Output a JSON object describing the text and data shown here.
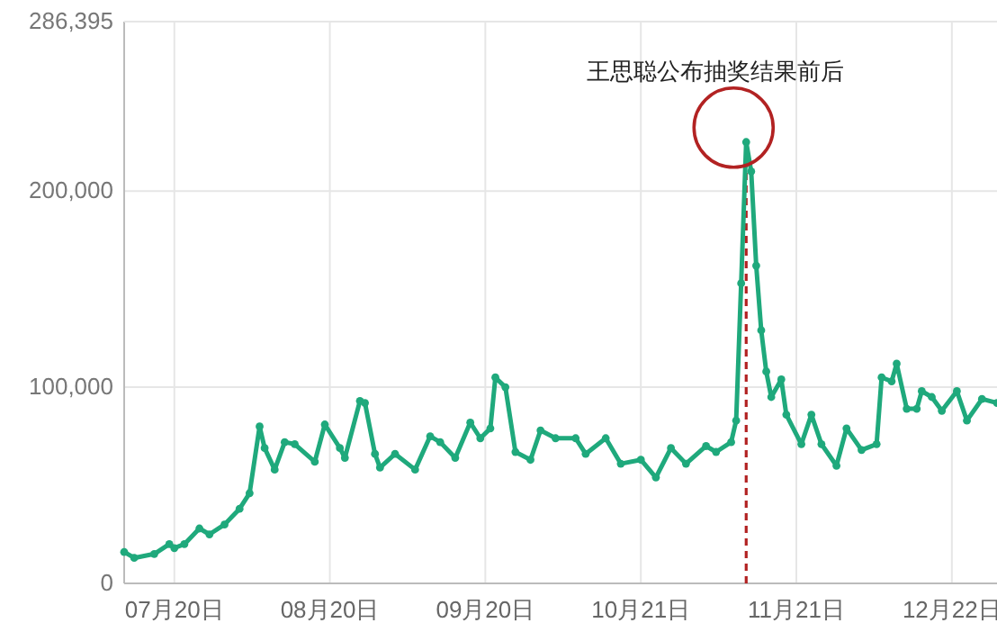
{
  "chart_data": {
    "type": "line",
    "color": "#1fa97c",
    "marker": "circle",
    "line_style": "solid",
    "grid": true,
    "x": [
      "--07-10",
      "--07-12",
      "--07-16",
      "--07-19",
      "--07-20",
      "--07-22",
      "--07-25",
      "--07-27",
      "--07-30",
      "--08-02",
      "--08-04",
      "--08-06",
      "--08-07",
      "--08-09",
      "--08-11",
      "--08-13",
      "--08-17",
      "--08-19",
      "--08-22",
      "--08-23",
      "--08-26",
      "--08-27",
      "--08-29",
      "--08-30",
      "--09-02",
      "--09-06",
      "--09-09",
      "--09-11",
      "--09-14",
      "--09-17",
      "--09-19",
      "--09-21",
      "--09-22",
      "--09-24",
      "--09-26",
      "--09-29",
      "--10-01",
      "--10-04",
      "--10-08",
      "--10-10",
      "--10-14",
      "--10-17",
      "--10-21",
      "--10-24",
      "--10-27",
      "--10-30",
      "--11-03",
      "--11-05",
      "--11-08",
      "--11-09",
      "--11-10",
      "--11-11",
      "--11-12",
      "--11-13",
      "--11-14",
      "--11-15",
      "--11-16",
      "--11-18",
      "--11-19",
      "--11-22",
      "--11-24",
      "--11-26",
      "--11-29",
      "--12-01",
      "--12-04",
      "--12-07",
      "--12-08",
      "--12-10",
      "--12-11",
      "--12-13",
      "--12-15",
      "--12-16",
      "--12-18",
      "--12-20",
      "--12-23",
      "--12-25",
      "--12-28",
      "--12-31"
    ],
    "values": [
      16000,
      13000,
      15000,
      20000,
      18000,
      20000,
      28000,
      25000,
      30000,
      38000,
      46000,
      80000,
      69000,
      58000,
      72000,
      71000,
      62000,
      81000,
      69000,
      64000,
      93000,
      92000,
      66000,
      59000,
      66000,
      58000,
      75000,
      72000,
      64000,
      82000,
      74000,
      79000,
      105000,
      100000,
      67000,
      63000,
      78000,
      74000,
      74000,
      66000,
      74000,
      61000,
      63000,
      54000,
      69000,
      61000,
      70000,
      67000,
      72000,
      83000,
      153000,
      225000,
      210000,
      162000,
      129000,
      108000,
      95000,
      104000,
      86000,
      71000,
      86000,
      71000,
      60000,
      79000,
      68000,
      71000,
      105000,
      103000,
      112000,
      89000,
      89000,
      98000,
      95000,
      88000,
      98000,
      83000,
      94000,
      92000
    ],
    "xlim": [
      "--07-10",
      "--12-31"
    ],
    "xticks": [
      {
        "value": "--07-20",
        "label": "07月20日"
      },
      {
        "value": "--08-20",
        "label": "08月20日"
      },
      {
        "value": "--09-20",
        "label": "09月20日"
      },
      {
        "value": "--10-21",
        "label": "10月21日"
      },
      {
        "value": "--11-21",
        "label": "11月21日"
      },
      {
        "value": "--12-22",
        "label": "12月22日"
      }
    ],
    "ylim": [
      0,
      286395
    ],
    "yticks": [
      0,
      {
        "value": 100000,
        "label": "100,000"
      },
      {
        "value": 200000,
        "label": "200,000"
      },
      {
        "value": 286395,
        "label": "286,395"
      }
    ],
    "ref_lines": [
      {
        "axis": "x",
        "value": "--11-11",
        "color": "#b22222",
        "line_style": "dashed"
      }
    ],
    "annotations": [
      {
        "text": "王思聪公布抽奖结果前后",
        "x": "--11-11",
        "y": 225000
      }
    ]
  }
}
